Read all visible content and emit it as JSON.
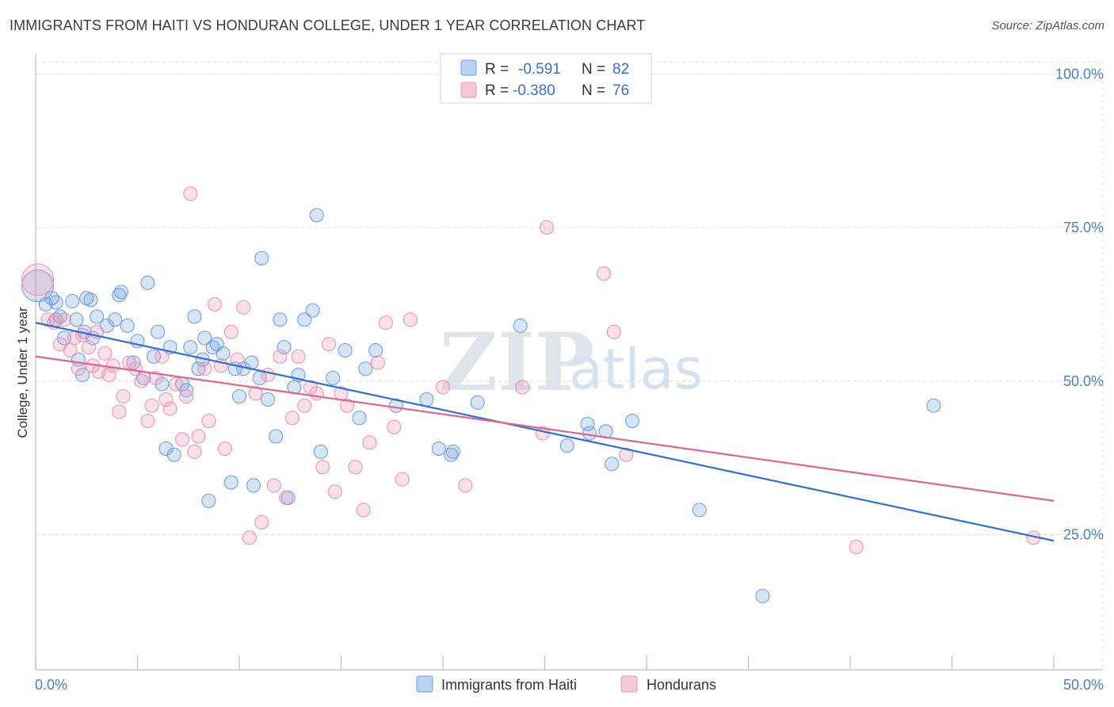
{
  "title": "IMMIGRANTS FROM HAITI VS HONDURAN COLLEGE, UNDER 1 YEAR CORRELATION CHART",
  "source": "Source: ZipAtlas.com",
  "watermark": {
    "zip": "ZIP",
    "atlas": "atlas"
  },
  "legend": {
    "r_label": "R =",
    "n_label": "N =",
    "rows": [
      {
        "r": "-0.591",
        "n": "82"
      },
      {
        "r": "-0.380",
        "n": "76"
      }
    ]
  },
  "chart_data": {
    "type": "scatter",
    "title": "IMMIGRANTS FROM HAITI VS HONDURAN COLLEGE, UNDER 1 YEAR CORRELATION CHART",
    "xlabel": "",
    "ylabel": "College, Under 1 year",
    "xlim": [
      0,
      50
    ],
    "ylim": [
      3,
      103
    ],
    "x_tick_labels": [
      "0.0%",
      "50.0%"
    ],
    "y_ticks": [
      25,
      50,
      75,
      100
    ],
    "y_tick_labels": [
      "25.0%",
      "50.0%",
      "75.0%",
      "100.0%"
    ],
    "grid": true,
    "legend_position": "top-center",
    "colors": {
      "haiti": "#6f9fe0",
      "honduran": "#ee93b0",
      "haiti_line": "#2f6fd6",
      "honduran_line": "#e0668f"
    },
    "series": [
      {
        "name": "Immigrants from Haiti",
        "trend": {
          "x": [
            0,
            50
          ],
          "y": [
            59.5,
            24.0
          ]
        },
        "points": [
          [
            0.1,
            65.5
          ],
          [
            0.5,
            62.5
          ],
          [
            0.8,
            63.5
          ],
          [
            1.0,
            60.0
          ],
          [
            1.2,
            60.5
          ],
          [
            1.4,
            57.0
          ],
          [
            1.8,
            63.0
          ],
          [
            2.0,
            60.0
          ],
          [
            2.1,
            53.5
          ],
          [
            2.3,
            51.0
          ],
          [
            2.4,
            58.0
          ],
          [
            2.5,
            63.5
          ],
          [
            2.7,
            63.2
          ],
          [
            2.8,
            57.0
          ],
          [
            3.0,
            60.5
          ],
          [
            3.5,
            59.0
          ],
          [
            3.9,
            60.0
          ],
          [
            4.1,
            64.0
          ],
          [
            4.2,
            64.5
          ],
          [
            4.5,
            59.0
          ],
          [
            4.8,
            53.0
          ],
          [
            5.0,
            56.5
          ],
          [
            5.3,
            50.5
          ],
          [
            5.5,
            66.0
          ],
          [
            5.8,
            54.0
          ],
          [
            6.0,
            58.0
          ],
          [
            6.2,
            49.5
          ],
          [
            6.4,
            39.0
          ],
          [
            6.6,
            55.5
          ],
          [
            6.8,
            38.0
          ],
          [
            7.2,
            49.5
          ],
          [
            7.4,
            48.5
          ],
          [
            7.6,
            55.5
          ],
          [
            7.8,
            60.5
          ],
          [
            8.0,
            52.0
          ],
          [
            8.2,
            53.5
          ],
          [
            8.3,
            57.0
          ],
          [
            8.5,
            30.5
          ],
          [
            8.7,
            55.5
          ],
          [
            8.9,
            56.0
          ],
          [
            9.2,
            54.5
          ],
          [
            9.6,
            33.5
          ],
          [
            9.8,
            52.0
          ],
          [
            10.0,
            47.5
          ],
          [
            10.2,
            52.0
          ],
          [
            10.6,
            53.0
          ],
          [
            10.7,
            33.0
          ],
          [
            11.0,
            50.5
          ],
          [
            11.1,
            70.0
          ],
          [
            11.4,
            47.0
          ],
          [
            11.8,
            41.0
          ],
          [
            12.0,
            60.0
          ],
          [
            12.2,
            55.5
          ],
          [
            12.4,
            31.0
          ],
          [
            12.7,
            49.0
          ],
          [
            12.9,
            51.0
          ],
          [
            13.2,
            60.0
          ],
          [
            13.6,
            61.5
          ],
          [
            13.8,
            77.0
          ],
          [
            14.0,
            38.5
          ],
          [
            14.6,
            50.5
          ],
          [
            15.2,
            55.0
          ],
          [
            15.9,
            44.0
          ],
          [
            16.2,
            52.0
          ],
          [
            16.7,
            55.0
          ],
          [
            17.7,
            46.0
          ],
          [
            19.2,
            47.0
          ],
          [
            19.8,
            39.0
          ],
          [
            20.4,
            38.0
          ],
          [
            20.5,
            38.5
          ],
          [
            21.7,
            46.5
          ],
          [
            23.8,
            59.0
          ],
          [
            26.1,
            39.5
          ],
          [
            27.1,
            43.0
          ],
          [
            27.2,
            41.5
          ],
          [
            28.3,
            36.5
          ],
          [
            29.3,
            43.5
          ],
          [
            32.6,
            29.0
          ],
          [
            35.7,
            15.0
          ],
          [
            44.1,
            46.0
          ],
          [
            28.0,
            41.8
          ],
          [
            1.0,
            62.8
          ]
        ]
      },
      {
        "name": "Hondurans",
        "trend": {
          "x": [
            0,
            50
          ],
          "y": [
            54.0,
            30.5
          ]
        },
        "points": [
          [
            0.1,
            66.5
          ],
          [
            0.6,
            60.0
          ],
          [
            0.9,
            59.5
          ],
          [
            1.2,
            56.0
          ],
          [
            1.4,
            60.0
          ],
          [
            1.7,
            55.0
          ],
          [
            1.9,
            57.0
          ],
          [
            2.1,
            52.0
          ],
          [
            2.3,
            57.5
          ],
          [
            2.6,
            55.5
          ],
          [
            2.8,
            52.5
          ],
          [
            3.0,
            58.0
          ],
          [
            3.1,
            51.5
          ],
          [
            3.4,
            54.5
          ],
          [
            3.6,
            51.0
          ],
          [
            3.8,
            52.5
          ],
          [
            4.1,
            45.0
          ],
          [
            4.3,
            47.5
          ],
          [
            4.6,
            53.0
          ],
          [
            4.9,
            52.0
          ],
          [
            5.2,
            50.0
          ],
          [
            5.5,
            43.5
          ],
          [
            5.7,
            46.0
          ],
          [
            5.9,
            50.5
          ],
          [
            6.2,
            54.0
          ],
          [
            6.4,
            47.0
          ],
          [
            6.6,
            45.5
          ],
          [
            6.9,
            49.5
          ],
          [
            7.2,
            40.5
          ],
          [
            7.4,
            47.5
          ],
          [
            7.6,
            80.5
          ],
          [
            7.8,
            38.5
          ],
          [
            8.0,
            41.0
          ],
          [
            8.3,
            52.0
          ],
          [
            8.5,
            43.5
          ],
          [
            8.8,
            62.5
          ],
          [
            9.1,
            52.5
          ],
          [
            9.3,
            39.0
          ],
          [
            9.6,
            58.0
          ],
          [
            9.9,
            53.5
          ],
          [
            10.2,
            62.0
          ],
          [
            10.5,
            24.5
          ],
          [
            10.8,
            48.0
          ],
          [
            11.1,
            27.0
          ],
          [
            11.4,
            51.0
          ],
          [
            11.7,
            33.0
          ],
          [
            12.0,
            54.0
          ],
          [
            12.3,
            31.0
          ],
          [
            12.6,
            44.0
          ],
          [
            12.9,
            54.0
          ],
          [
            13.2,
            46.0
          ],
          [
            13.5,
            49.0
          ],
          [
            13.8,
            48.0
          ],
          [
            14.1,
            36.0
          ],
          [
            14.4,
            56.0
          ],
          [
            14.7,
            32.0
          ],
          [
            15.0,
            48.0
          ],
          [
            15.3,
            46.0
          ],
          [
            15.7,
            36.0
          ],
          [
            16.1,
            29.0
          ],
          [
            16.4,
            40.0
          ],
          [
            16.8,
            53.0
          ],
          [
            17.2,
            59.5
          ],
          [
            17.6,
            42.5
          ],
          [
            18.0,
            34.0
          ],
          [
            18.4,
            60.0
          ],
          [
            20.0,
            49.0
          ],
          [
            21.1,
            33.0
          ],
          [
            23.9,
            49.0
          ],
          [
            24.9,
            41.5
          ],
          [
            25.1,
            75.0
          ],
          [
            27.9,
            67.5
          ],
          [
            28.4,
            58.0
          ],
          [
            29.0,
            38.0
          ],
          [
            40.3,
            23.0
          ],
          [
            49.0,
            24.5
          ]
        ]
      }
    ]
  }
}
